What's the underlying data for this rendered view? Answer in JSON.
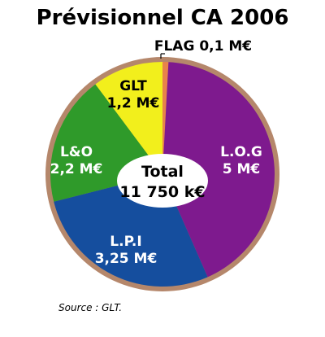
{
  "chart_data": {
    "type": "pie",
    "title": "Prévisionnel CA 2006",
    "slices": [
      {
        "name": "FLAG",
        "value": 0.1,
        "label_lines": [
          "FLAG 0,1 M€"
        ],
        "color": "#e8834a"
      },
      {
        "name": "L.O.G",
        "value": 5,
        "label_lines": [
          "L.O.G",
          "5 M€"
        ],
        "color": "#7e1a8e"
      },
      {
        "name": "L.P.I",
        "value": 3.25,
        "label_lines": [
          "L.P.I",
          "3,25 M€"
        ],
        "color": "#154e9e"
      },
      {
        "name": "L&O",
        "value": 2.2,
        "label_lines": [
          "L&O",
          "2,2 M€"
        ],
        "color": "#2f9a2a"
      },
      {
        "name": "GLT",
        "value": 1.2,
        "label_lines": [
          "GLT",
          "1,2 M€"
        ],
        "color": "#f2ef1c"
      }
    ],
    "center_label": [
      "Total",
      "11 750 k€"
    ],
    "source": "Source : GLT.",
    "rim_color": "#b5876b"
  }
}
